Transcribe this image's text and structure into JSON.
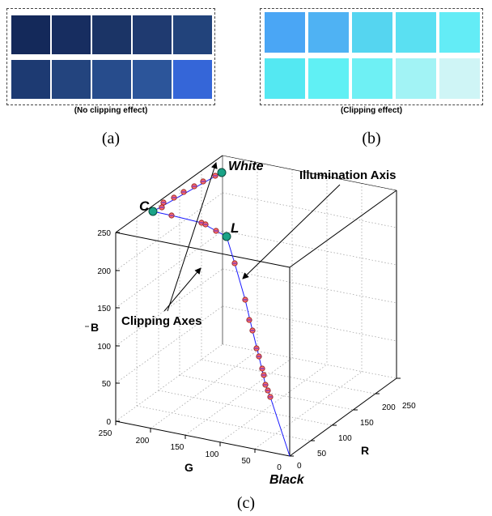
{
  "panel_a": {
    "caption": "(No clipping effect)",
    "label": "(a)",
    "swatches": [
      [
        "#14295a",
        "#172d60",
        "#1b3466",
        "#1f3a70",
        "#22437b"
      ],
      [
        "#1d3a72",
        "#23447e",
        "#274c8c",
        "#2c559a",
        "#3566d8"
      ]
    ]
  },
  "panel_b": {
    "caption": "(Clipping effect)",
    "label": "(b)",
    "swatches": [
      [
        "#4aa6f5",
        "#4fb2f3",
        "#55d5f0",
        "#5ae0f2",
        "#63ecf6"
      ],
      [
        "#54e8f2",
        "#60f0f4",
        "#6ef0f4",
        "#a2f3f5",
        "#cff5f6"
      ]
    ]
  },
  "panel_c": {
    "label": "(c)",
    "axes": {
      "b_label": "B",
      "g_label": "G",
      "r_label": "R",
      "b_ticks": [
        "0",
        "50",
        "100",
        "150",
        "200",
        "250"
      ],
      "g_ticks": [
        "250",
        "200",
        "150",
        "100",
        "50",
        "0"
      ],
      "r_ticks": [
        "0",
        "50",
        "100",
        "150",
        "200",
        "250"
      ]
    },
    "annotations": {
      "white": "White",
      "black": "Black",
      "c_point": "C",
      "l_point": "L",
      "illumination_axis": "Illumination Axis",
      "clipping_axes": "Clipping Axes"
    },
    "colors": {
      "line": "#1a1aff",
      "point_fill": "#ff6a6a",
      "key_point_fill": "#1aa387"
    }
  }
}
